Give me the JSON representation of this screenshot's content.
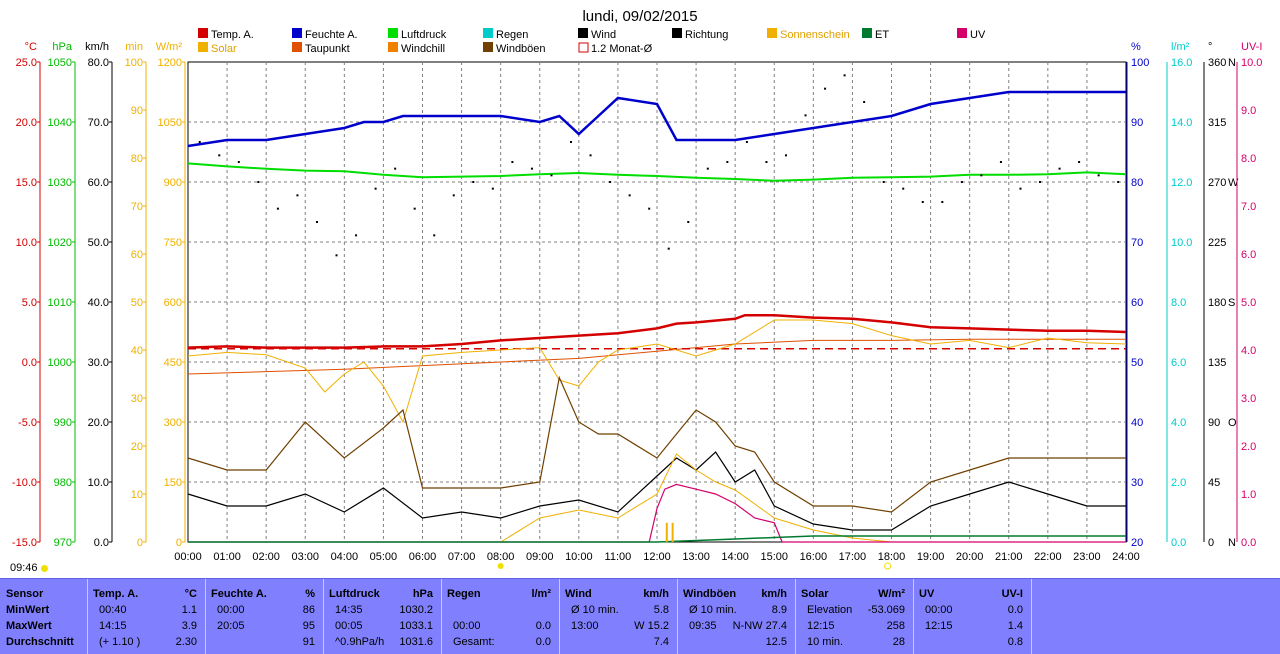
{
  "title": "lundi, 09/02/2015",
  "clock": "09:46",
  "legend": [
    {
      "label": "Temp. A.",
      "color": "#d40000"
    },
    {
      "label": "Feuchte A.",
      "color": "#0000cc"
    },
    {
      "label": "Luftdruck",
      "color": "#00dd00"
    },
    {
      "label": "Regen",
      "color": "#00cccc"
    },
    {
      "label": "Wind",
      "color": "#000000"
    },
    {
      "label": "Richtung",
      "color": "#000000"
    },
    {
      "label": "Sonnenschein",
      "color": "#f0b000"
    },
    {
      "label": "ET",
      "color": "#007a30"
    },
    {
      "label": "UV",
      "color": "#d4006a"
    },
    {
      "label": "Solar",
      "color": "#f0b000"
    },
    {
      "label": "Taupunkt",
      "color": "#e05000"
    },
    {
      "label": "Windchill",
      "color": "#f08000"
    },
    {
      "label": "Windböen",
      "color": "#704000"
    },
    {
      "label": "1.2 Monat-Ø",
      "color": "#d40000",
      "outline": true
    }
  ],
  "axes": {
    "left": [
      {
        "unit": "°C",
        "color": "#d40000",
        "ticks": [
          "25.0",
          "20.0",
          "15.0",
          "10.0",
          "5.0",
          "0.0",
          "-5.0",
          "-10.0",
          "-15.0"
        ]
      },
      {
        "unit": "hPa",
        "color": "#00bb00",
        "ticks": [
          "1050",
          "1040",
          "1030",
          "1020",
          "1010",
          "1000",
          "990",
          "980",
          "970"
        ]
      },
      {
        "unit": "km/h",
        "color": "#000000",
        "ticks": [
          "80.0",
          "70.0",
          "60.0",
          "50.0",
          "40.0",
          "30.0",
          "20.0",
          "10.0",
          "0.0"
        ]
      },
      {
        "unit": "min",
        "color": "#f0b000",
        "ticks": [
          "100",
          "90",
          "80",
          "70",
          "60",
          "50",
          "40",
          "30",
          "20",
          "10",
          "0"
        ]
      },
      {
        "unit": "W/m²",
        "color": "#f0b000",
        "ticks": [
          "1200",
          "1050",
          "900",
          "750",
          "600",
          "450",
          "300",
          "150",
          "0"
        ]
      }
    ],
    "right": [
      {
        "unit": "%",
        "color": "#0000cc",
        "ticks": [
          "100",
          "90",
          "80",
          "70",
          "60",
          "50",
          "40",
          "30",
          "20"
        ]
      },
      {
        "unit": "l/m²",
        "color": "#00cccc",
        "ticks": [
          "16.0",
          "14.0",
          "12.0",
          "10.0",
          "8.0",
          "6.0",
          "4.0",
          "2.0",
          "0.0"
        ]
      },
      {
        "unit": "°",
        "color": "#000000",
        "ticks": [
          "360",
          "315",
          "270",
          "225",
          "180",
          "135",
          "90",
          "45",
          "0"
        ]
      },
      {
        "unit": "",
        "color": "#000000",
        "ticks": [
          "N",
          "",
          "W",
          "",
          "S",
          "",
          "O",
          "",
          "N"
        ]
      },
      {
        "unit": "UV-I",
        "color": "#d4006a",
        "ticks": [
          "10.0",
          "9.0",
          "8.0",
          "7.0",
          "6.0",
          "5.0",
          "4.0",
          "3.0",
          "2.0",
          "1.0",
          "0.0"
        ]
      }
    ],
    "x_ticks": [
      "00:00",
      "01:00",
      "02:00",
      "03:00",
      "04:00",
      "05:00",
      "06:00",
      "07:00",
      "08:00",
      "09:00",
      "10:00",
      "11:00",
      "12:00",
      "13:00",
      "14:00",
      "15:00",
      "16:00",
      "17:00",
      "18:00",
      "19:00",
      "20:00",
      "21:00",
      "22:00",
      "23:00",
      "24:00"
    ]
  },
  "chart_data": {
    "type": "line",
    "x_range": [
      "00:00",
      "24:00"
    ],
    "grid": true,
    "series": [
      {
        "name": "Feuchte A.",
        "unit": "%",
        "color": "#0000cc",
        "x": [
          0,
          1,
          2,
          3,
          4,
          4.5,
          5,
          5.5,
          6,
          7,
          8,
          9,
          9.5,
          10,
          10.5,
          11,
          12,
          12.5,
          13,
          14,
          15,
          16,
          17,
          18,
          19,
          20,
          21,
          22,
          23,
          24
        ],
        "y": [
          86,
          87,
          87,
          88,
          89,
          90,
          90,
          91,
          91,
          91,
          91,
          90,
          91,
          88,
          91,
          94,
          93,
          87,
          87,
          87,
          88,
          89,
          90,
          91,
          93,
          94,
          95,
          95,
          95,
          95
        ]
      },
      {
        "name": "Luftdruck",
        "unit": "hPa",
        "color": "#00dd00",
        "x": [
          0,
          1,
          2,
          3,
          4,
          5,
          6,
          7,
          8,
          9,
          10,
          11,
          12,
          13,
          14,
          15,
          16,
          17,
          18,
          19,
          20,
          21,
          22,
          23,
          24
        ],
        "y": [
          1033.1,
          1032.6,
          1032.2,
          1031.9,
          1031.8,
          1031.2,
          1030.8,
          1030.9,
          1031.0,
          1031.3,
          1031.5,
          1031.2,
          1031.0,
          1030.7,
          1030.5,
          1030.2,
          1030.4,
          1030.7,
          1030.8,
          1030.9,
          1031.2,
          1031.2,
          1031.3,
          1031.6,
          1031.3
        ]
      },
      {
        "name": "Temp. A.",
        "unit": "°C",
        "color": "#d40000",
        "x": [
          0,
          1,
          2,
          3,
          4,
          5,
          6,
          7,
          8,
          9,
          10,
          11,
          12,
          12.5,
          13,
          14,
          14.25,
          15,
          16,
          17,
          18,
          19,
          20,
          21,
          22,
          23,
          24
        ],
        "y": [
          1.2,
          1.3,
          1.2,
          1.2,
          1.2,
          1.3,
          1.3,
          1.5,
          1.8,
          2.0,
          2.2,
          2.4,
          2.8,
          3.2,
          3.3,
          3.6,
          3.9,
          3.9,
          3.7,
          3.6,
          3.3,
          2.9,
          2.8,
          2.7,
          2.6,
          2.6,
          2.5
        ]
      },
      {
        "name": "Taupunkt",
        "unit": "°C",
        "color": "#e05000",
        "x": [
          0,
          2,
          4,
          6,
          8,
          10,
          12,
          14,
          16,
          18,
          20,
          22,
          24
        ],
        "y": [
          -1.0,
          -0.8,
          -0.6,
          -0.3,
          0.0,
          0.3,
          0.9,
          1.5,
          1.8,
          1.8,
          1.9,
          1.9,
          1.9
        ]
      },
      {
        "name": "1.2 Monat-Ø",
        "unit": "°C",
        "color": "#d40000",
        "x": [
          0,
          24
        ],
        "y": [
          1.1,
          1.1
        ]
      },
      {
        "name": "Windchill",
        "unit": "°C",
        "color": "#f0b000",
        "x": [
          0,
          1,
          2,
          3,
          3.5,
          4,
          4.5,
          5,
          5.5,
          6,
          7,
          8,
          9,
          9.5,
          10,
          10.5,
          11,
          12,
          13,
          14,
          15,
          16,
          17,
          18,
          19,
          20,
          21,
          22,
          23,
          24
        ],
        "y": [
          0.5,
          0.8,
          0.6,
          -0.5,
          -2.5,
          -1.0,
          0.0,
          -2.0,
          -5.0,
          0.5,
          0.8,
          1.0,
          1.2,
          -1.5,
          -2.0,
          0.0,
          1.0,
          1.5,
          0.5,
          1.5,
          3.5,
          3.5,
          3.2,
          2.2,
          1.5,
          1.8,
          1.2,
          2.0,
          1.6,
          1.5
        ]
      },
      {
        "name": "Wind",
        "unit": "km/h",
        "color": "#000000",
        "x": [
          0,
          1,
          2,
          3,
          4,
          5,
          6,
          7,
          8,
          9,
          10,
          11,
          12,
          12.5,
          13,
          13.5,
          14,
          14.5,
          15,
          16,
          17,
          18,
          19,
          20,
          21,
          22,
          23,
          24
        ],
        "y": [
          8,
          6,
          6,
          8,
          5,
          9,
          4,
          5,
          4,
          6,
          7,
          5,
          11,
          14,
          12,
          15,
          10,
          12,
          6,
          3,
          2,
          2,
          6,
          8,
          10,
          8,
          6,
          6
        ]
      },
      {
        "name": "Windböen",
        "unit": "km/h",
        "color": "#704000",
        "x": [
          0,
          1,
          2,
          3,
          4,
          5,
          5.5,
          6,
          7,
          8,
          9,
          9.5,
          10,
          10.5,
          11,
          12,
          12.5,
          13,
          13.5,
          14,
          14.5,
          15,
          16,
          17,
          18,
          19,
          20,
          21,
          22,
          23,
          24
        ],
        "y": [
          14,
          12,
          12,
          20,
          14,
          19,
          22,
          9,
          9,
          9,
          10,
          27.4,
          20,
          18,
          18,
          14,
          18,
          22,
          20,
          16,
          15,
          10,
          6,
          6,
          5,
          10,
          12,
          14,
          14,
          14,
          14
        ]
      },
      {
        "name": "Solar",
        "unit": "W/m²",
        "color": "#f0b000",
        "x": [
          0,
          8,
          9,
          10,
          11,
          12,
          12.5,
          13,
          13.5,
          14,
          15,
          16,
          17,
          18,
          24
        ],
        "y": [
          0,
          0,
          60,
          80,
          60,
          120,
          220,
          180,
          150,
          130,
          60,
          30,
          10,
          0,
          0
        ]
      },
      {
        "name": "UV",
        "unit": "UV-I",
        "color": "#d4006a",
        "x": [
          0,
          11.8,
          12.0,
          12.2,
          12.5,
          13.0,
          13.5,
          14,
          14.5,
          15,
          15.2,
          24
        ],
        "y": [
          0,
          0,
          0.7,
          1.1,
          1.2,
          1.1,
          1.0,
          0.8,
          0.5,
          0.4,
          0,
          0
        ]
      },
      {
        "name": "ET",
        "unit": "l/m²",
        "color": "#007a30",
        "x": [
          0,
          12,
          13,
          14,
          15,
          16,
          24
        ],
        "y": [
          0,
          0,
          0.05,
          0.1,
          0.15,
          0.2,
          0.2
        ]
      },
      {
        "name": "Sonnenschein",
        "unit": "min",
        "color": "#f0b000",
        "x": [
          12.25,
          12.4
        ],
        "y": [
          4,
          4
        ]
      }
    ],
    "direction_points": {
      "x": [
        0.3,
        0.8,
        1.3,
        1.8,
        2.3,
        2.8,
        3.3,
        3.8,
        4.3,
        4.8,
        5.3,
        5.8,
        6.3,
        6.8,
        7.3,
        7.8,
        8.3,
        8.8,
        9.3,
        9.8,
        10.3,
        10.8,
        11.3,
        11.8,
        12.3,
        12.8,
        13.3,
        13.8,
        14.3,
        14.8,
        15.3,
        15.8,
        16.3,
        16.8,
        17.3,
        17.8,
        18.3,
        18.8,
        19.3,
        19.8,
        20.3,
        20.8,
        21.3,
        21.8,
        22.3,
        22.8,
        23.3,
        23.8
      ],
      "y": [
        300,
        290,
        285,
        270,
        250,
        260,
        240,
        215,
        230,
        265,
        280,
        250,
        230,
        260,
        270,
        265,
        285,
        280,
        275,
        300,
        290,
        270,
        260,
        250,
        220,
        240,
        280,
        285,
        300,
        285,
        290,
        320,
        340,
        350,
        330,
        270,
        265,
        255,
        255,
        270,
        275,
        285,
        265,
        270,
        280,
        285,
        275,
        270
      ]
    }
  },
  "stats": {
    "sensor": {
      "header": "Sensor",
      "rows": [
        "MinWert",
        "MaxWert",
        "Durchschnitt"
      ]
    },
    "temp": {
      "header": "Temp. A.",
      "unit": "°C",
      "rows": [
        [
          "00:40",
          "1.1"
        ],
        [
          "14:15",
          "3.9"
        ],
        [
          "(+ 1.10 )",
          "2.30"
        ]
      ]
    },
    "feuchte": {
      "header": "Feuchte A.",
      "unit": "%",
      "rows": [
        [
          "00:00",
          "86"
        ],
        [
          "20:05",
          "95"
        ],
        [
          "",
          "91"
        ]
      ]
    },
    "luftdruck": {
      "header": "Luftdruck",
      "unit": "hPa",
      "rows": [
        [
          "14:35",
          "1030.2"
        ],
        [
          "00:05",
          "1033.1"
        ],
        [
          "^0.9hPa/h",
          "1031.6"
        ]
      ]
    },
    "regen": {
      "header": "Regen",
      "unit": "l/m²",
      "rows": [
        [
          "",
          ""
        ],
        [
          "00:00",
          "0.0"
        ],
        [
          "Gesamt:",
          "0.0"
        ]
      ]
    },
    "wind": {
      "header": "Wind",
      "unit": "km/h",
      "rows": [
        [
          "Ø 10 min.",
          "5.8"
        ],
        [
          "13:00",
          "W 15.2"
        ],
        [
          "",
          "7.4"
        ]
      ]
    },
    "windboen": {
      "header": "Windböen",
      "unit": "km/h",
      "rows": [
        [
          "Ø 10 min.",
          "8.9"
        ],
        [
          "09:35",
          "N-NW 27.4"
        ],
        [
          "",
          "12.5"
        ]
      ]
    },
    "solar": {
      "header": "Solar",
      "unit": "W/m²",
      "rows": [
        [
          "Elevation",
          "-53.069"
        ],
        [
          "12:15",
          "258"
        ],
        [
          "10 min.",
          "28"
        ]
      ]
    },
    "uv": {
      "header": "UV",
      "unit": "UV-I",
      "rows": [
        [
          "00:00",
          "0.0"
        ],
        [
          "12:15",
          "1.4"
        ],
        [
          "",
          "0.8"
        ]
      ]
    }
  }
}
